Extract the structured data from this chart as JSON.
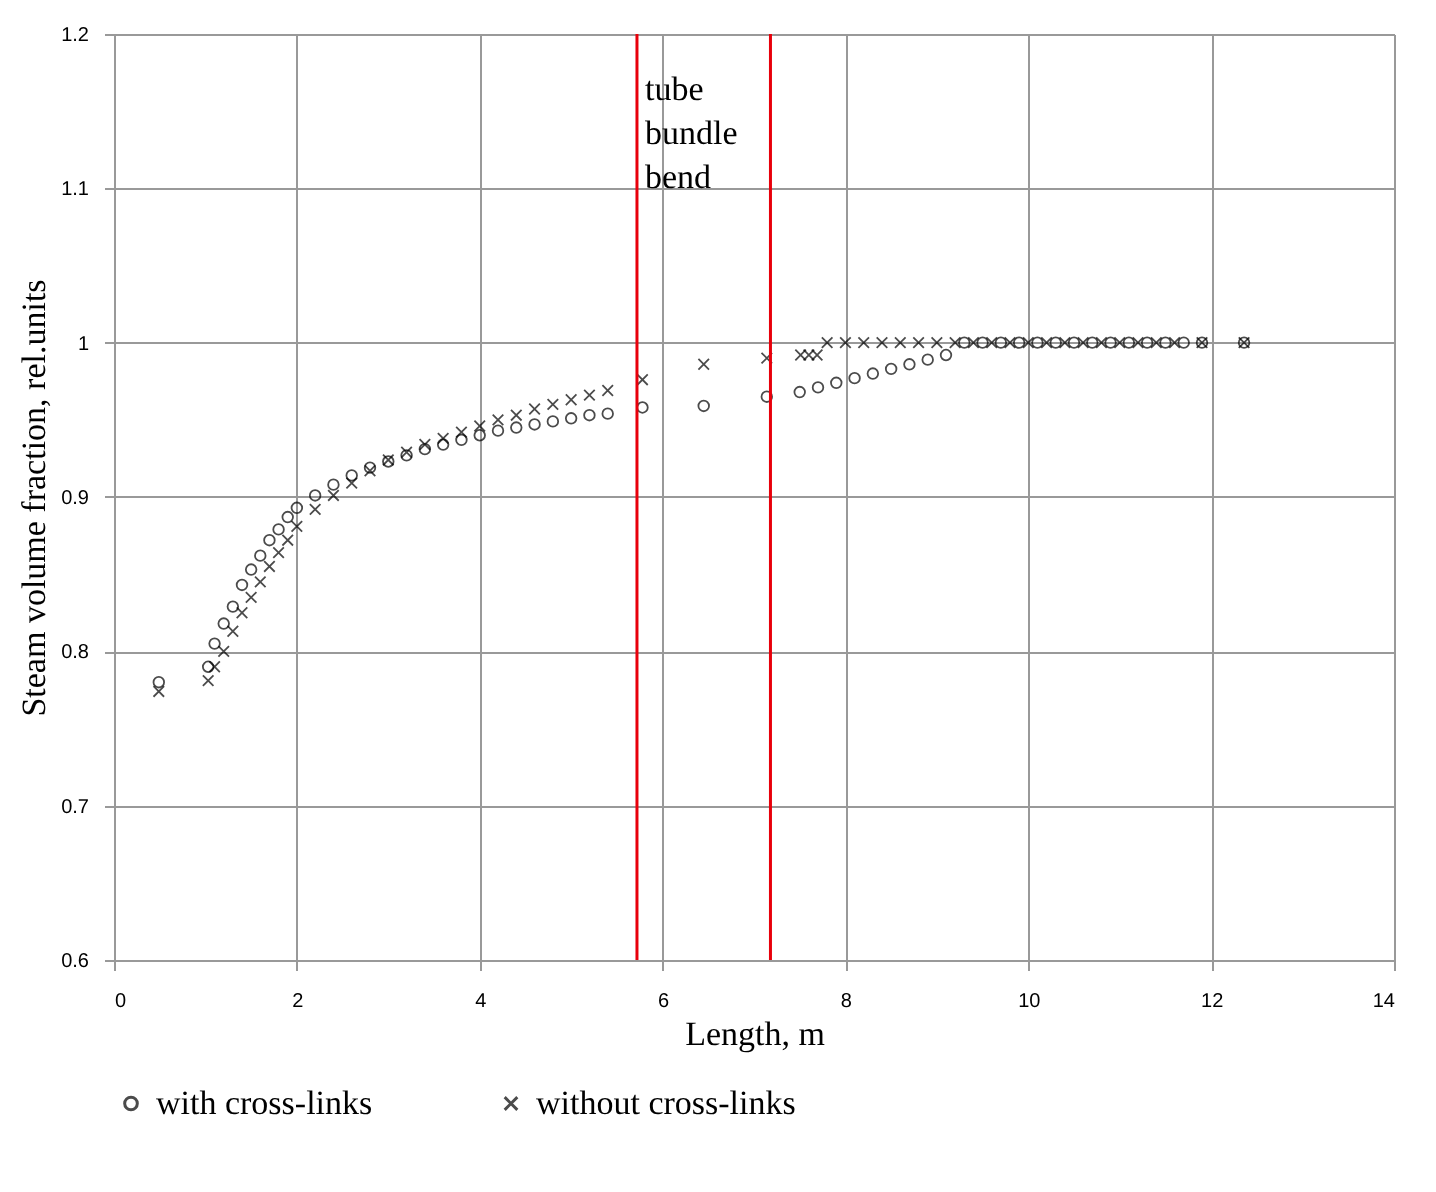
{
  "chart_data": {
    "type": "scatter",
    "xlabel": "Length, m",
    "ylabel": "Steam volume fraction, rel.units",
    "xlim": [
      0,
      14
    ],
    "xticks": [
      0,
      2,
      4,
      6,
      8,
      10,
      12,
      14
    ],
    "ylim": [
      0.6,
      1.2
    ],
    "yticks": [
      0.6,
      0.7,
      0.8,
      0.9,
      1,
      1.1,
      1.2
    ],
    "grid": true,
    "legend": "bottom",
    "ref_lines": [
      {
        "axis": "x",
        "value": 5.72,
        "label": "tube bundle bend",
        "color": "#e8000b"
      },
      {
        "axis": "x",
        "value": 7.18,
        "color": "#e8000b"
      }
    ],
    "series": [
      {
        "name": "with cross-links",
        "color": "#000000",
        "marker": "circle",
        "x": [
          0.49,
          1.03,
          1.1,
          1.2,
          1.3,
          1.4,
          1.5,
          1.6,
          1.7,
          1.8,
          1.9,
          2.0,
          2.2,
          2.4,
          2.6,
          2.8,
          3.0,
          3.2,
          3.4,
          3.6,
          3.8,
          4.0,
          4.2,
          4.4,
          4.6,
          4.8,
          5.0,
          5.2,
          5.4,
          5.78,
          6.45,
          7.14,
          7.5,
          7.7,
          7.9,
          8.1,
          8.3,
          8.5,
          8.7,
          8.9,
          9.1,
          9.3,
          9.5,
          9.7,
          9.9,
          10.1,
          10.3,
          10.5,
          10.7,
          10.9,
          11.1,
          11.3,
          11.5,
          11.7,
          11.9,
          12.36
        ],
        "values": [
          0.78,
          0.79,
          0.805,
          0.818,
          0.829,
          0.843,
          0.853,
          0.862,
          0.872,
          0.879,
          0.887,
          0.893,
          0.901,
          0.908,
          0.914,
          0.919,
          0.923,
          0.927,
          0.931,
          0.934,
          0.937,
          0.94,
          0.943,
          0.945,
          0.947,
          0.949,
          0.951,
          0.953,
          0.954,
          0.958,
          0.959,
          0.965,
          0.968,
          0.971,
          0.974,
          0.977,
          0.98,
          0.983,
          0.986,
          0.989,
          0.992,
          1,
          1,
          1,
          1,
          1,
          1,
          1,
          1,
          1,
          1,
          1,
          1,
          1,
          1,
          1
        ]
      },
      {
        "name": "without cross-links",
        "color": "#000000",
        "marker": "cross",
        "x": [
          0.49,
          1.03,
          1.1,
          1.2,
          1.3,
          1.4,
          1.5,
          1.6,
          1.7,
          1.8,
          1.9,
          2.0,
          2.2,
          2.4,
          2.6,
          2.8,
          3.0,
          3.2,
          3.4,
          3.6,
          3.8,
          4.0,
          4.2,
          4.4,
          4.6,
          4.8,
          5.0,
          5.2,
          5.4,
          5.78,
          6.45,
          7.14,
          7.51,
          7.6,
          7.69,
          7.8,
          8.0,
          8.2,
          8.4,
          8.6,
          8.8,
          9.0,
          9.2,
          9.4,
          9.6,
          9.8,
          10.0,
          10.2,
          10.4,
          10.6,
          10.8,
          11.0,
          11.2,
          11.4,
          11.6,
          11.9,
          12.36
        ],
        "values": [
          0.774,
          0.781,
          0.79,
          0.8,
          0.813,
          0.825,
          0.835,
          0.845,
          0.855,
          0.864,
          0.872,
          0.881,
          0.892,
          0.901,
          0.909,
          0.917,
          0.924,
          0.929,
          0.934,
          0.938,
          0.942,
          0.946,
          0.95,
          0.953,
          0.957,
          0.96,
          0.963,
          0.966,
          0.969,
          0.976,
          0.986,
          0.99,
          0.992,
          0.992,
          0.992,
          1,
          1,
          1,
          1,
          1,
          1,
          1,
          1,
          1,
          1,
          1,
          1,
          1,
          1,
          1,
          1,
          1,
          1,
          1,
          1,
          1,
          1
        ]
      }
    ]
  }
}
